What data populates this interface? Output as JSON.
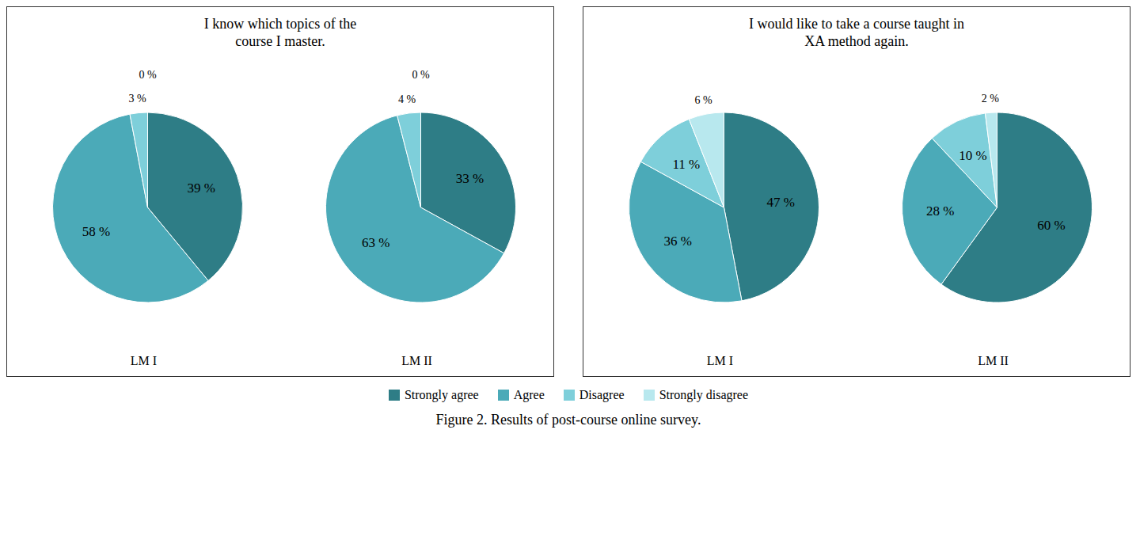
{
  "chart_data": [
    {
      "type": "pie",
      "title": "I know which topics of the\ncourse I master.",
      "categories": [
        "Strongly agree",
        "Agree",
        "Disagree",
        "Strongly disagree"
      ],
      "colors": [
        "#2e7d86",
        "#4baab8",
        "#7ecfda",
        "#b8e8ee"
      ],
      "series": [
        {
          "name": "LM I",
          "values": [
            39,
            58,
            3,
            0
          ],
          "value_labels": [
            "39 %",
            "58 %",
            "3 %",
            "0 %"
          ]
        },
        {
          "name": "LM II",
          "values": [
            33,
            63,
            4,
            0
          ],
          "value_labels": [
            "33 %",
            "63 %",
            "4 %",
            "0 %"
          ]
        }
      ],
      "data_labels": true,
      "legend": "bottom"
    },
    {
      "type": "pie",
      "title": "I would like to take a course taught in\nXA method again.",
      "categories": [
        "Strongly agree",
        "Agree",
        "Disagree",
        "Strongly disagree"
      ],
      "colors": [
        "#2e7d86",
        "#4baab8",
        "#7ecfda",
        "#b8e8ee"
      ],
      "series": [
        {
          "name": "LM I",
          "values": [
            47,
            36,
            11,
            6
          ],
          "value_labels": [
            "47 %",
            "36 %",
            "11 %",
            "6 %"
          ]
        },
        {
          "name": "LM II",
          "values": [
            60,
            28,
            10,
            2
          ],
          "value_labels": [
            "60 %",
            "28 %",
            "10 %",
            "2 %"
          ]
        }
      ],
      "data_labels": true,
      "legend": "bottom"
    }
  ],
  "annotations": [
    "Figure 2. Results of post-course online survey."
  ]
}
